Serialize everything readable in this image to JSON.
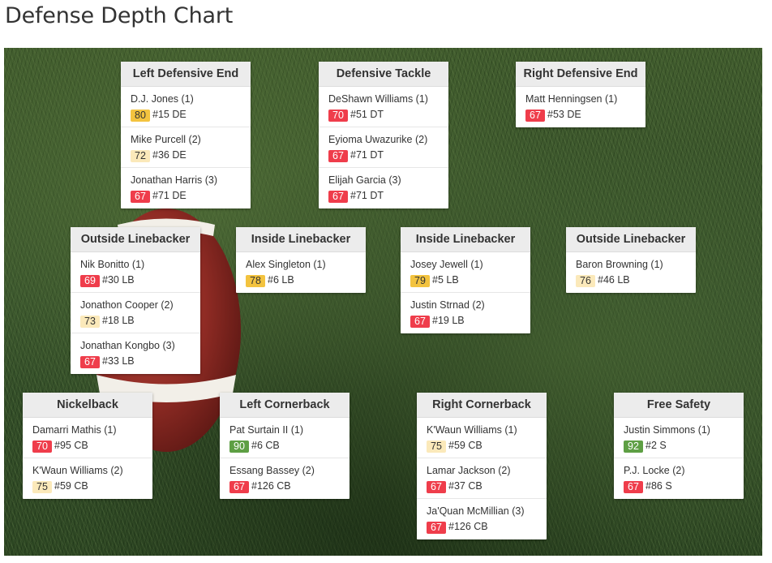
{
  "page": {
    "title": "Defense Depth Chart"
  },
  "colors": {
    "red": "#ef3d4b",
    "gold": "#f3c33f",
    "pale": "#fbe9ba",
    "green": "#5e9f44"
  },
  "positions": {
    "lde": {
      "title": "Left Defensive End",
      "players": [
        {
          "name": "D.J. Jones (1)",
          "rating": "80",
          "tier": "gold",
          "info": "#15 DE"
        },
        {
          "name": "Mike Purcell (2)",
          "rating": "72",
          "tier": "pale",
          "info": "#36 DE"
        },
        {
          "name": "Jonathan Harris (3)",
          "rating": "67",
          "tier": "red",
          "info": "#71 DE"
        }
      ]
    },
    "dt": {
      "title": "Defensive Tackle",
      "players": [
        {
          "name": "DeShawn Williams (1)",
          "rating": "70",
          "tier": "red",
          "info": "#51 DT"
        },
        {
          "name": "Eyioma Uwazurike (2)",
          "rating": "67",
          "tier": "red",
          "info": "#71 DT"
        },
        {
          "name": "Elijah Garcia (3)",
          "rating": "67",
          "tier": "red",
          "info": "#71 DT"
        }
      ]
    },
    "rde": {
      "title": "Right Defensive End",
      "players": [
        {
          "name": "Matt Henningsen (1)",
          "rating": "67",
          "tier": "red",
          "info": "#53 DE"
        }
      ]
    },
    "olb_left": {
      "title": "Outside Linebacker",
      "players": [
        {
          "name": "Nik Bonitto (1)",
          "rating": "69",
          "tier": "red",
          "info": "#30 LB"
        },
        {
          "name": "Jonathon Cooper (2)",
          "rating": "73",
          "tier": "pale",
          "info": "#18 LB"
        },
        {
          "name": "Jonathan Kongbo (3)",
          "rating": "67",
          "tier": "red",
          "info": "#33 LB"
        }
      ]
    },
    "ilb_left": {
      "title": "Inside Linebacker",
      "players": [
        {
          "name": "Alex Singleton (1)",
          "rating": "78",
          "tier": "gold",
          "info": "#6 LB"
        }
      ]
    },
    "ilb_right": {
      "title": "Inside Linebacker",
      "players": [
        {
          "name": "Josey Jewell (1)",
          "rating": "79",
          "tier": "gold",
          "info": "#5 LB"
        },
        {
          "name": "Justin Strnad (2)",
          "rating": "67",
          "tier": "red",
          "info": "#19 LB"
        }
      ]
    },
    "olb_right": {
      "title": "Outside Linebacker",
      "players": [
        {
          "name": "Baron Browning (1)",
          "rating": "76",
          "tier": "pale",
          "info": "#46 LB"
        }
      ]
    },
    "nickel": {
      "title": "Nickelback",
      "players": [
        {
          "name": "Damarri Mathis (1)",
          "rating": "70",
          "tier": "red",
          "info": "#95 CB"
        },
        {
          "name": "K'Waun Williams (2)",
          "rating": "75",
          "tier": "pale",
          "info": "#59 CB"
        }
      ]
    },
    "lcb": {
      "title": "Left Cornerback",
      "players": [
        {
          "name": "Pat Surtain II (1)",
          "rating": "90",
          "tier": "green",
          "info": "#6 CB"
        },
        {
          "name": "Essang Bassey (2)",
          "rating": "67",
          "tier": "red",
          "info": "#126 CB"
        }
      ]
    },
    "rcb": {
      "title": "Right Cornerback",
      "players": [
        {
          "name": "K'Waun Williams (1)",
          "rating": "75",
          "tier": "pale",
          "info": "#59 CB"
        },
        {
          "name": "Lamar Jackson (2)",
          "rating": "67",
          "tier": "red",
          "info": "#37 CB"
        },
        {
          "name": "Ja'Quan McMillian (3)",
          "rating": "67",
          "tier": "red",
          "info": "#126 CB"
        }
      ]
    },
    "fs": {
      "title": "Free Safety",
      "players": [
        {
          "name": "Justin Simmons (1)",
          "rating": "92",
          "tier": "green",
          "info": "#2 S"
        },
        {
          "name": "P.J. Locke (2)",
          "rating": "67",
          "tier": "red",
          "info": "#86 S"
        }
      ]
    }
  }
}
